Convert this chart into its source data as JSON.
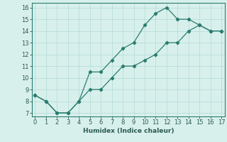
{
  "line1_x": [
    0,
    1,
    2,
    3,
    4,
    5,
    6,
    7,
    8,
    9,
    10,
    11,
    12,
    13,
    14,
    15,
    16,
    17
  ],
  "line1_y": [
    8.5,
    8.0,
    7.0,
    7.0,
    8.0,
    10.5,
    10.5,
    11.5,
    12.5,
    13.0,
    14.5,
    15.5,
    16.0,
    15.0,
    15.0,
    14.5,
    14.0,
    14.0
  ],
  "line2_x": [
    0,
    1,
    2,
    3,
    4,
    5,
    6,
    7,
    8,
    9,
    10,
    11,
    12,
    13,
    14,
    15,
    16,
    17
  ],
  "line2_y": [
    8.5,
    8.0,
    7.0,
    7.0,
    8.0,
    9.0,
    9.0,
    10.0,
    11.0,
    11.0,
    11.5,
    12.0,
    13.0,
    13.0,
    14.0,
    14.5,
    14.0,
    14.0
  ],
  "line_color": "#2a7d6f",
  "bg_color": "#d8f0ec",
  "grid_color": "#b8ddd8",
  "xlabel": "Humidex (Indice chaleur)",
  "xlabel_fontsize": 6.5,
  "tick_fontsize": 6.0,
  "yticks": [
    7,
    8,
    9,
    10,
    11,
    12,
    13,
    14,
    15,
    16
  ],
  "xticks": [
    0,
    1,
    2,
    3,
    4,
    5,
    6,
    7,
    8,
    9,
    10,
    11,
    12,
    13,
    14,
    15,
    16,
    17
  ],
  "ylim": [
    6.7,
    16.4
  ],
  "xlim": [
    -0.3,
    17.3
  ]
}
